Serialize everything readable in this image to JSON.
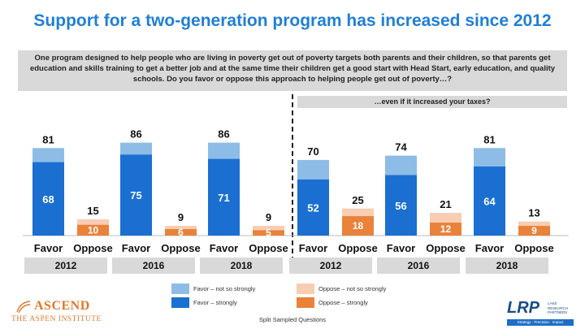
{
  "title": "Support for a two-generation program has increased since 2012",
  "question": "One program designed to help people who are living in poverty get out of poverty targets both parents and their children, so that parents get education and skills training to get a better job and at the same time their children get a good start with Head Start, early education, and quality schools. Do you favor or oppose this approach to helping people get out of poverty…?",
  "subquestion": "…even if it increased your taxes?",
  "footer_note": "Split Sampled Questions",
  "logos": {
    "ascend_word": "ASCEND",
    "ascend_sub": "THE ASPEN INSTITUTE",
    "lrp_word": "LRP",
    "lrp_side": "LAKE RESEARCH PARTNERS",
    "lrp_bar": "Strategy · Precision · Impact"
  },
  "colors": {
    "favor_strong": "#1a6fd1",
    "favor_not_strong": "#8dbde6",
    "oppose_strong": "#e9823a",
    "oppose_not_strong": "#f8cdb2",
    "year_band": "#d9d9d9",
    "title": "#1f7fd6"
  },
  "legend": [
    {
      "label": "Favor – not so strongly",
      "color": "#8dbde6"
    },
    {
      "label": "Favor – strongly",
      "color": "#1a6fd1"
    },
    {
      "label": "Oppose – not so strongly",
      "color": "#f8cdb2"
    },
    {
      "label": "Oppose – strongly",
      "color": "#e9823a"
    }
  ],
  "chart_data": {
    "type": "bar",
    "stacked": true,
    "categories": [
      "Favor",
      "Oppose"
    ],
    "series_names": [
      "Favor – strongly",
      "Favor – not so strongly",
      "Oppose – strongly",
      "Oppose – not so strongly"
    ],
    "panels": [
      {
        "question": "main",
        "year": "2012",
        "favor_total": 81,
        "favor_strong": 68,
        "oppose_total": 15,
        "oppose_strong": 10
      },
      {
        "question": "main",
        "year": "2016",
        "favor_total": 86,
        "favor_strong": 75,
        "oppose_total": 9,
        "oppose_strong": 6
      },
      {
        "question": "main",
        "year": "2018",
        "favor_total": 86,
        "favor_strong": 71,
        "oppose_total": 9,
        "oppose_strong": 5
      },
      {
        "question": "taxes",
        "year": "2012",
        "favor_total": 70,
        "favor_strong": 52,
        "oppose_total": 25,
        "oppose_strong": 18
      },
      {
        "question": "taxes",
        "year": "2016",
        "favor_total": 74,
        "favor_strong": 56,
        "oppose_total": 21,
        "oppose_strong": 12
      },
      {
        "question": "taxes",
        "year": "2018",
        "favor_total": 81,
        "favor_strong": 64,
        "oppose_total": 13,
        "oppose_strong": 9
      }
    ],
    "ylim": [
      0,
      100
    ]
  }
}
